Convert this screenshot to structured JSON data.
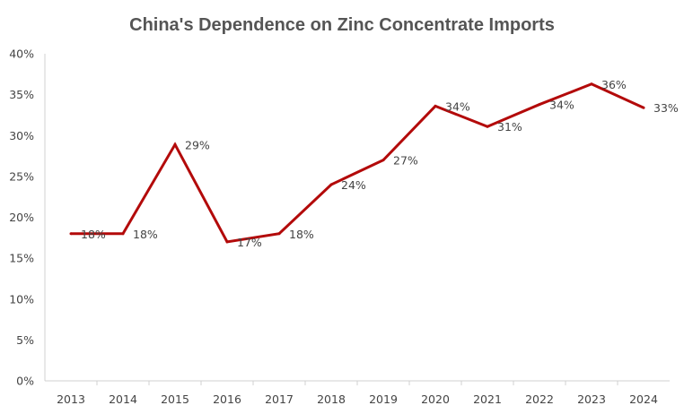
{
  "chart_data": {
    "type": "line",
    "title": "China's Dependence on Zinc Concentrate Imports",
    "xlabel": "",
    "ylabel": "",
    "categories": [
      "2013",
      "2014",
      "2015",
      "2016",
      "2017",
      "2018",
      "2019",
      "2020",
      "2021",
      "2022",
      "2023",
      "2024"
    ],
    "series": [
      {
        "name": "Dependence on Zinc Concentrate Imports",
        "values": [
          18,
          18,
          28.9,
          17,
          18,
          24,
          27,
          33.6,
          31.1,
          33.8,
          36.3,
          33.4
        ],
        "data_labels": [
          "18%",
          "18%",
          "29%",
          "17%",
          "18%",
          "24%",
          "27%",
          "34%",
          "31%",
          "34%",
          "36%",
          "33%"
        ],
        "color": "#B30A0A"
      }
    ],
    "ylim": [
      0,
      40
    ],
    "yticks": [
      0,
      5,
      10,
      15,
      20,
      25,
      30,
      35,
      40
    ],
    "ytick_labels": [
      "0%",
      "5%",
      "10%",
      "15%",
      "20%",
      "25%",
      "30%",
      "35%",
      "40%"
    ],
    "grid": false,
    "legend": "none"
  }
}
